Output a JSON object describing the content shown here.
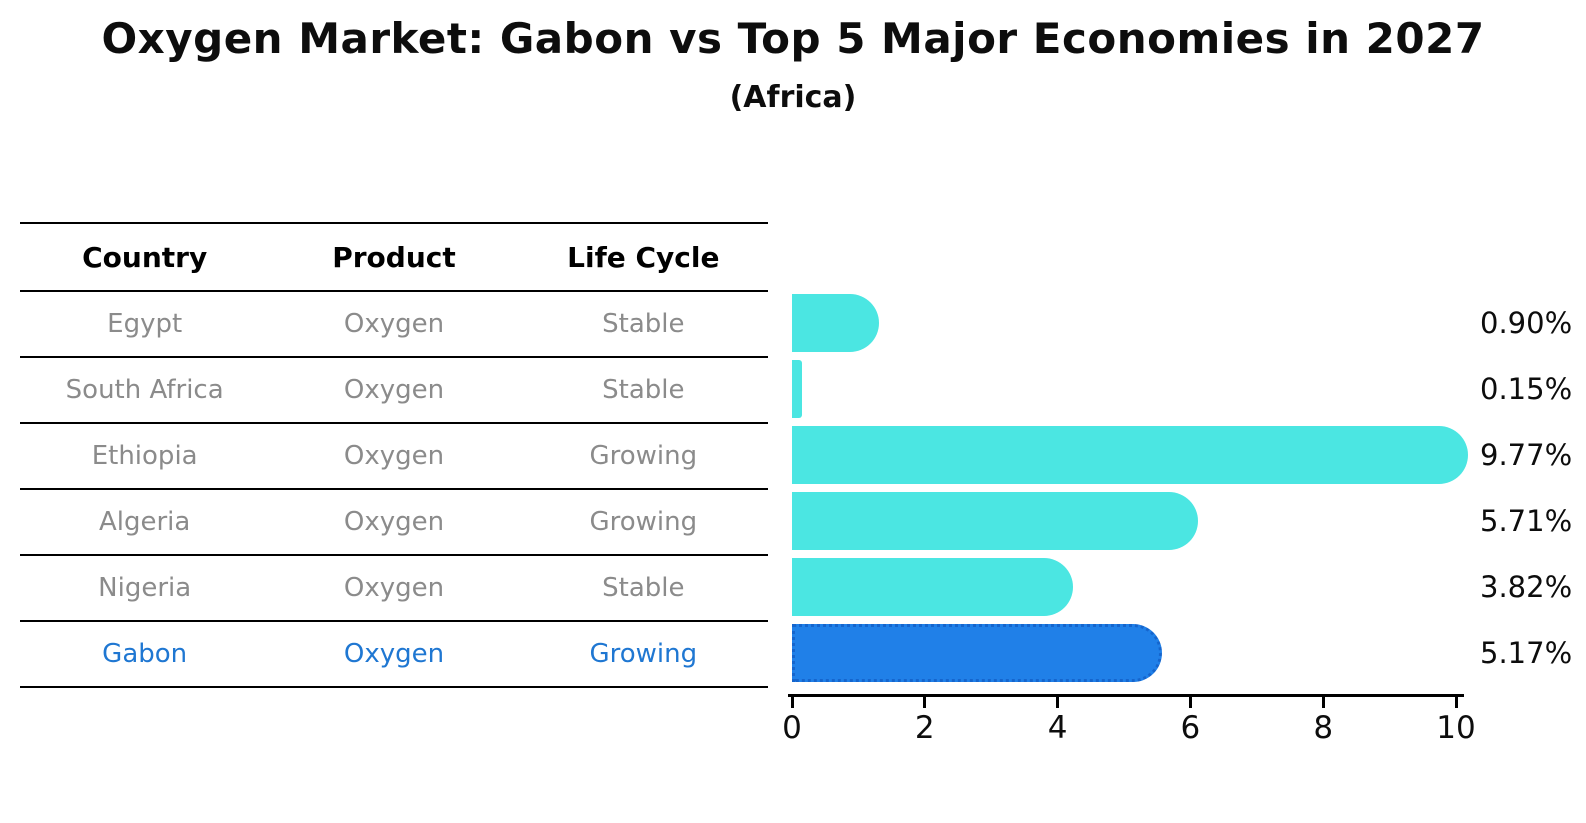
{
  "header": {
    "title": "Oxygen Market: Gabon vs Top 5 Major Economies in 2027",
    "subtitle": "(Africa)"
  },
  "table": {
    "columns": [
      "Country",
      "Product",
      "Life Cycle"
    ]
  },
  "chart_data": {
    "type": "bar",
    "orientation": "horizontal",
    "title": "Oxygen Market: Gabon vs Top 5 Major Economies in 2027",
    "subtitle": "(Africa)",
    "categories": [
      "Egypt",
      "South Africa",
      "Ethiopia",
      "Algeria",
      "Nigeria",
      "Gabon"
    ],
    "values": [
      0.9,
      0.15,
      9.77,
      5.71,
      3.82,
      5.17
    ],
    "value_labels": [
      "0.90%",
      "0.15%",
      "9.77%",
      "5.71%",
      "3.82%",
      "5.17%"
    ],
    "rows": [
      {
        "country": "Egypt",
        "product": "Oxygen",
        "life_cycle": "Stable",
        "value": 0.9,
        "label": "0.90%",
        "highlight": false
      },
      {
        "country": "South Africa",
        "product": "Oxygen",
        "life_cycle": "Stable",
        "value": 0.15,
        "label": "0.15%",
        "highlight": false
      },
      {
        "country": "Ethiopia",
        "product": "Oxygen",
        "life_cycle": "Growing",
        "value": 9.77,
        "label": "9.77%",
        "highlight": false
      },
      {
        "country": "Algeria",
        "product": "Oxygen",
        "life_cycle": "Growing",
        "value": 5.71,
        "label": "5.71%",
        "highlight": false
      },
      {
        "country": "Nigeria",
        "product": "Oxygen",
        "life_cycle": "Stable",
        "value": 3.82,
        "label": "3.82%",
        "highlight": false
      },
      {
        "country": "Gabon",
        "product": "Oxygen",
        "life_cycle": "Growing",
        "value": 5.17,
        "label": "5.17%",
        "highlight": true
      }
    ],
    "xlim": [
      0,
      10
    ],
    "x_ticks": [
      0,
      2,
      4,
      6,
      8,
      10
    ],
    "grid": false,
    "legend": "none",
    "colors": {
      "bar": "#4be6e2",
      "highlight_bar": "#2080e8",
      "highlight_border": "#1565cd",
      "highlight_text": "#1f77d2",
      "row_text": "#8b8b8b",
      "header_text": "#000000",
      "label_text": "#0d0d0d"
    }
  }
}
